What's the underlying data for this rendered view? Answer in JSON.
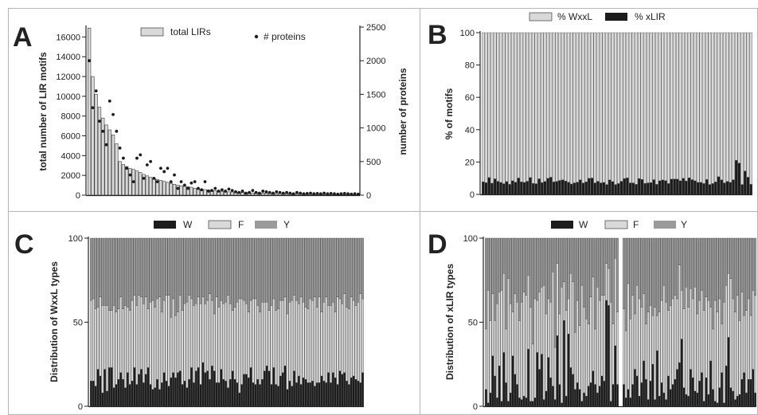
{
  "colors": {
    "light": "#d9d9d9",
    "mid": "#9a9a9a",
    "dark": "#1c1c1c",
    "outline": "#3a3a3a"
  },
  "chart_data": [
    {
      "panel": "A",
      "type": "bar",
      "series": [
        {
          "name": "total LIRs",
          "axis": "left",
          "values": [
            16900,
            12000,
            10200,
            8900,
            7800,
            7100,
            6600,
            6100,
            5200,
            3400,
            3100,
            2900,
            2700,
            2600,
            2450,
            2300,
            2100,
            1950,
            1800,
            1700,
            1600,
            1500,
            1400,
            1300,
            1200,
            1100,
            1000,
            950,
            900,
            850,
            800,
            700,
            650,
            600,
            560,
            520,
            480,
            450,
            420,
            390,
            360,
            340,
            320,
            300,
            280,
            260,
            250,
            240,
            230,
            220,
            210,
            200,
            190,
            180,
            170,
            160,
            150,
            140,
            130,
            125,
            120,
            115,
            110,
            105,
            100,
            95,
            90,
            85,
            80,
            78,
            75,
            72,
            70,
            68,
            65,
            62,
            60,
            58,
            55,
            52
          ]
        },
        {
          "name": "# proteins",
          "axis": "right",
          "values": [
            2000,
            1300,
            1550,
            1100,
            950,
            750,
            1400,
            1200,
            950,
            700,
            550,
            400,
            300,
            200,
            550,
            600,
            250,
            450,
            500,
            250,
            200,
            400,
            350,
            400,
            200,
            300,
            100,
            200,
            150,
            100,
            180,
            200,
            100,
            80,
            200,
            60,
            70,
            100,
            60,
            80,
            60,
            90,
            70,
            50,
            40,
            60,
            30,
            40,
            70,
            40,
            30,
            60,
            50,
            40,
            30,
            50,
            40,
            30,
            40,
            30,
            20,
            40,
            30,
            20,
            25,
            30,
            20,
            25,
            20,
            30,
            20,
            25,
            20,
            15,
            20,
            25,
            20,
            15,
            20,
            15
          ]
        }
      ],
      "ylabel": "total number of LIR motifs",
      "ylim": [
        0,
        17000
      ],
      "yticks": [
        "0",
        "2000",
        "4000",
        "6000",
        "8000",
        "10000",
        "12000",
        "14000",
        "16000"
      ],
      "y2label": "number of proteins",
      "y2lim": [
        0,
        2500
      ],
      "y2ticks": [
        "0",
        "500",
        "1000",
        "1500",
        "2000",
        "2500"
      ],
      "legend": "top-center"
    },
    {
      "panel": "B",
      "type": "bar",
      "stacked": true,
      "series": [
        {
          "name": "% WxxL",
          "values": [
            92.2,
            92.8,
            89.6,
            93.1,
            90.4,
            91.9,
            92.6,
            93.4,
            92.1,
            93.8,
            91.6,
            92.5,
            89.9,
            92.3,
            92.6,
            91.9,
            89.6,
            93.2,
            93.4,
            90.4,
            92.7,
            92.0,
            90.1,
            89.4,
            92.3,
            92.0,
            91.4,
            91.0,
            91.7,
            92.5,
            93.6,
            92.9,
            92.5,
            91.0,
            93.0,
            92.3,
            90.1,
            89.9,
            92.9,
            91.9,
            92.9,
            92.6,
            93.9,
            91.1,
            92.1,
            93.9,
            93.3,
            91.9,
            90.2,
            89.8,
            92.9,
            92.9,
            93.8,
            90.2,
            90.8,
            93.2,
            92.9,
            92.7,
            90.9,
            93.8,
            91.6,
            91.1,
            91.5,
            93.3,
            90.6,
            90.5,
            90.6,
            91.6,
            90.1,
            91.7,
            89.8,
            90.9,
            91.6,
            92.6,
            92.6,
            93.3,
            90.8,
            93.9,
            93.3,
            92.3,
            89.1,
            91.0,
            92.9,
            92.0,
            92.6,
            91.0,
            79.0,
            80.7,
            93.9,
            85.6,
            89.4,
            93.8
          ]
        },
        {
          "name": "% xLIR",
          "values": [
            7.8,
            7.2,
            10.4,
            6.9,
            9.6,
            8.1,
            7.4,
            6.6,
            7.9,
            6.2,
            8.4,
            7.5,
            10.1,
            7.7,
            7.4,
            8.1,
            10.4,
            6.8,
            6.6,
            9.6,
            7.3,
            8.0,
            9.9,
            10.6,
            7.7,
            8.0,
            8.6,
            9.0,
            8.3,
            7.5,
            6.4,
            7.1,
            7.5,
            9.0,
            7.0,
            7.7,
            9.9,
            10.1,
            7.1,
            8.1,
            7.1,
            7.4,
            6.1,
            8.9,
            7.9,
            6.1,
            6.7,
            8.1,
            9.8,
            10.2,
            7.1,
            7.1,
            6.2,
            9.8,
            9.2,
            6.8,
            7.1,
            7.3,
            9.1,
            6.2,
            8.4,
            8.9,
            8.5,
            6.7,
            9.4,
            9.5,
            9.4,
            8.4,
            9.9,
            8.3,
            10.2,
            9.1,
            8.4,
            7.4,
            7.4,
            6.7,
            9.2,
            6.1,
            6.7,
            7.7,
            10.9,
            9.0,
            7.1,
            8.0,
            7.4,
            9.0,
            21.0,
            19.3,
            6.1,
            14.4,
            10.6,
            6.2
          ]
        }
      ],
      "ylabel": "% of motifs",
      "ylim": [
        0,
        100
      ],
      "yticks": [
        "0",
        "20",
        "40",
        "60",
        "80",
        "100"
      ],
      "legend": "top-center"
    },
    {
      "panel": "C",
      "type": "bar",
      "stacked": true,
      "series": [
        {
          "name": "W",
          "values": [
            15,
            15,
            12,
            22,
            18,
            8,
            22,
            9,
            23,
            23,
            11,
            13,
            16,
            20,
            16,
            11,
            20,
            13,
            15,
            23,
            13,
            19,
            22,
            14,
            19,
            23,
            13,
            10,
            11,
            16,
            10,
            14,
            20,
            15,
            12,
            17,
            20,
            17,
            20,
            21,
            13,
            15,
            11,
            16,
            23,
            14,
            21,
            23,
            13,
            26,
            20,
            21,
            16,
            24,
            21,
            14,
            14,
            22,
            16,
            15,
            11,
            16,
            21,
            16,
            14,
            8,
            13,
            19,
            19,
            17,
            23,
            14,
            13,
            16,
            13,
            16,
            21,
            24,
            21,
            13,
            23,
            13,
            12,
            18,
            20,
            24,
            10,
            15,
            12,
            21,
            14,
            18,
            13,
            17,
            16,
            14,
            14,
            15,
            12,
            14,
            14,
            18,
            15,
            14,
            20,
            14,
            20,
            17,
            13,
            21,
            19,
            20,
            15,
            13,
            17,
            18,
            16,
            15,
            14,
            20
          ]
        },
        {
          "name": "F",
          "values": [
            48,
            49,
            46,
            37,
            47,
            52,
            38,
            51,
            34,
            34,
            49,
            43,
            42,
            45,
            42,
            49,
            39,
            44,
            48,
            43,
            47,
            47,
            43,
            47,
            46,
            35,
            49,
            53,
            48,
            48,
            55,
            42,
            43,
            51,
            54,
            36,
            44,
            37,
            36,
            45,
            44,
            46,
            51,
            50,
            41,
            46,
            40,
            42,
            48,
            39,
            41,
            42,
            51,
            39,
            34,
            51,
            45,
            41,
            45,
            47,
            55,
            45,
            36,
            43,
            48,
            56,
            51,
            44,
            42,
            39,
            40,
            50,
            51,
            44,
            43,
            46,
            41,
            38,
            36,
            47,
            41,
            44,
            46,
            45,
            43,
            41,
            45,
            47,
            51,
            45,
            49,
            43,
            52,
            45,
            43,
            44,
            50,
            48,
            53,
            45,
            51,
            38,
            47,
            51,
            40,
            46,
            42,
            39,
            52,
            43,
            42,
            47,
            44,
            45,
            48,
            45,
            44,
            47,
            53,
            44
          ]
        },
        {
          "name": "Y",
          "values": [
            37,
            36,
            42,
            41,
            35,
            40,
            40,
            40,
            43,
            43,
            40,
            44,
            42,
            35,
            42,
            40,
            41,
            43,
            37,
            34,
            40,
            34,
            35,
            39,
            35,
            42,
            38,
            37,
            41,
            36,
            35,
            44,
            37,
            34,
            34,
            47,
            36,
            46,
            44,
            34,
            43,
            39,
            38,
            34,
            36,
            40,
            39,
            35,
            39,
            35,
            39,
            37,
            33,
            37,
            45,
            35,
            41,
            37,
            39,
            38,
            34,
            39,
            43,
            41,
            38,
            36,
            36,
            37,
            39,
            44,
            37,
            36,
            36,
            40,
            44,
            38,
            38,
            38,
            43,
            40,
            36,
            43,
            42,
            37,
            37,
            35,
            45,
            38,
            37,
            34,
            37,
            39,
            35,
            38,
            41,
            42,
            36,
            37,
            35,
            41,
            35,
            44,
            38,
            35,
            40,
            40,
            38,
            44,
            35,
            36,
            39,
            33,
            41,
            42,
            35,
            37,
            40,
            38,
            33,
            36
          ]
        }
      ],
      "ylabel": "Distribution of WxxL types",
      "ylim": [
        0,
        100
      ],
      "yticks": [
        "0",
        "50",
        "100"
      ],
      "legend": "top-center"
    },
    {
      "panel": "D",
      "type": "bar",
      "stacked": true,
      "series": [
        {
          "name": "W",
          "values": [
            10,
            2,
            8,
            30,
            18,
            5,
            24,
            3,
            32,
            14,
            3,
            8,
            30,
            19,
            13,
            5,
            4,
            6,
            5,
            34,
            3,
            3,
            5,
            32,
            22,
            31,
            4,
            9,
            29,
            17,
            12,
            4,
            42,
            13,
            2,
            51,
            6,
            43,
            23,
            19,
            10,
            14,
            10,
            3,
            8,
            6,
            12,
            14,
            21,
            13,
            8,
            12,
            18,
            15,
            63,
            60,
            3,
            13,
            36,
            13,
            13,
            5,
            10,
            5,
            13,
            22,
            18,
            6,
            14,
            27,
            16,
            4,
            15,
            25,
            4,
            33,
            6,
            14,
            8,
            4,
            18,
            10,
            13,
            16,
            22,
            26,
            40,
            11,
            7,
            6,
            22,
            17,
            9,
            8,
            15,
            20,
            3,
            17,
            7,
            27,
            10,
            3,
            2,
            11,
            20,
            2,
            24,
            41,
            11,
            9,
            4,
            6,
            7,
            16,
            20,
            8,
            16,
            16,
            22,
            8
          ]
        },
        {
          "name": "F",
          "values": [
            36,
            67,
            43,
            37,
            33,
            56,
            44,
            66,
            47,
            32,
            73,
            53,
            26,
            48,
            49,
            46,
            58,
            62,
            61,
            44,
            56,
            34,
            59,
            31,
            46,
            40,
            68,
            46,
            35,
            45,
            68,
            31,
            43,
            42,
            69,
            23,
            51,
            21,
            56,
            55,
            34,
            49,
            38,
            69,
            51,
            46,
            37,
            51,
            56,
            33,
            63,
            51,
            48,
            51,
            22,
            22,
            59,
            36,
            52,
            43,
            45,
            40,
            63,
            47,
            53,
            33,
            54,
            58,
            45,
            40,
            33,
            52,
            45,
            29,
            55,
            21,
            50,
            49,
            64,
            58,
            39,
            50,
            51,
            50,
            42,
            58,
            29,
            47,
            64,
            53,
            48,
            47,
            62,
            47,
            48,
            49,
            54,
            48,
            56,
            32,
            36,
            60,
            54,
            53,
            29,
            60,
            48,
            38,
            65,
            55,
            52,
            60,
            44,
            52,
            34,
            49,
            48,
            38,
            47,
            58
          ]
        },
        {
          "name": "Y",
          "values": [
            54,
            31,
            49,
            33,
            49,
            39,
            32,
            31,
            21,
            54,
            24,
            39,
            44,
            33,
            38,
            49,
            38,
            32,
            34,
            22,
            41,
            63,
            36,
            37,
            32,
            29,
            28,
            45,
            36,
            38,
            20,
            65,
            15,
            45,
            29,
            26,
            43,
            36,
            21,
            26,
            56,
            37,
            52,
            28,
            41,
            48,
            51,
            35,
            23,
            54,
            29,
            37,
            34,
            34,
            15,
            18,
            38,
            51,
            12,
            44,
            42,
            55,
            27,
            48,
            34,
            45,
            28,
            36,
            41,
            33,
            51,
            44,
            40,
            46,
            41,
            46,
            44,
            37,
            28,
            38,
            43,
            40,
            36,
            34,
            36,
            16,
            31,
            42,
            29,
            41,
            30,
            36,
            29,
            45,
            37,
            31,
            43,
            35,
            37,
            41,
            54,
            37,
            44,
            36,
            51,
            38,
            28,
            21,
            24,
            36,
            44,
            34,
            49,
            32,
            46,
            43,
            36,
            46,
            31,
            34
          ]
        }
      ],
      "ylabel": "Distribution of xLIR types",
      "ylim": [
        0,
        100
      ],
      "yticks": [
        "0",
        "50",
        "100"
      ],
      "legend": "top-center"
    }
  ]
}
